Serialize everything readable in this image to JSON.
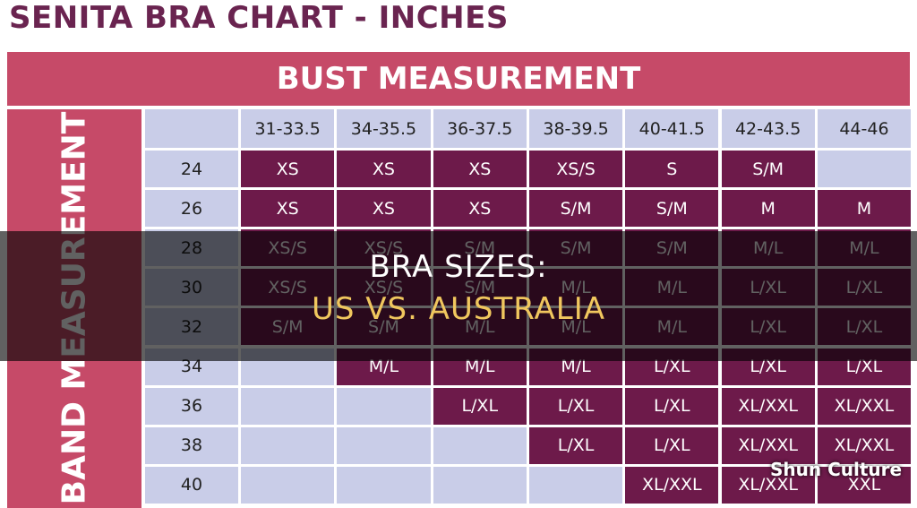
{
  "header": {
    "title": "SENITA BRA CHART - INCHES"
  },
  "table": {
    "column_header": "BUST MEASUREMENT",
    "row_header": "BAND MEASUREMENT",
    "columns": [
      "31-33.5",
      "34-35.5",
      "36-37.5",
      "38-39.5",
      "40-41.5",
      "42-43.5",
      "44-46"
    ],
    "rows": [
      {
        "band": "24",
        "sizes": [
          "XS",
          "XS",
          "XS",
          "XS/S",
          "S",
          "S/M",
          null
        ]
      },
      {
        "band": "26",
        "sizes": [
          "XS",
          "XS",
          "XS",
          "S/M",
          "S/M",
          "M",
          "M"
        ]
      },
      {
        "band": "28",
        "sizes": [
          "XS/S",
          "XS/S",
          "S/M",
          "S/M",
          "S/M",
          "M/L",
          "M/L"
        ]
      },
      {
        "band": "30",
        "sizes": [
          "XS/S",
          "XS/S",
          "S/M",
          "M/L",
          "M/L",
          "L/XL",
          "L/XL"
        ]
      },
      {
        "band": "32",
        "sizes": [
          "S/M",
          "S/M",
          "M/L",
          "M/L",
          "M/L",
          "L/XL",
          "L/XL"
        ]
      },
      {
        "band": "34",
        "sizes": [
          null,
          "M/L",
          "M/L",
          "M/L",
          "L/XL",
          "L/XL",
          "L/XL"
        ]
      },
      {
        "band": "36",
        "sizes": [
          null,
          null,
          "L/XL",
          "L/XL",
          "L/XL",
          "XL/XXL",
          "XL/XXL"
        ]
      },
      {
        "band": "38",
        "sizes": [
          null,
          null,
          null,
          "L/XL",
          "L/XL",
          "XL/XXL",
          "XL/XXL"
        ]
      },
      {
        "band": "40",
        "sizes": [
          null,
          null,
          null,
          null,
          "XL/XXL",
          "XL/XXL",
          "XXL"
        ]
      }
    ]
  },
  "overlay": {
    "line1": "BRA SIZES:",
    "line2": "US VS. AUSTRALIA"
  },
  "watermark": "Shun Culture"
}
